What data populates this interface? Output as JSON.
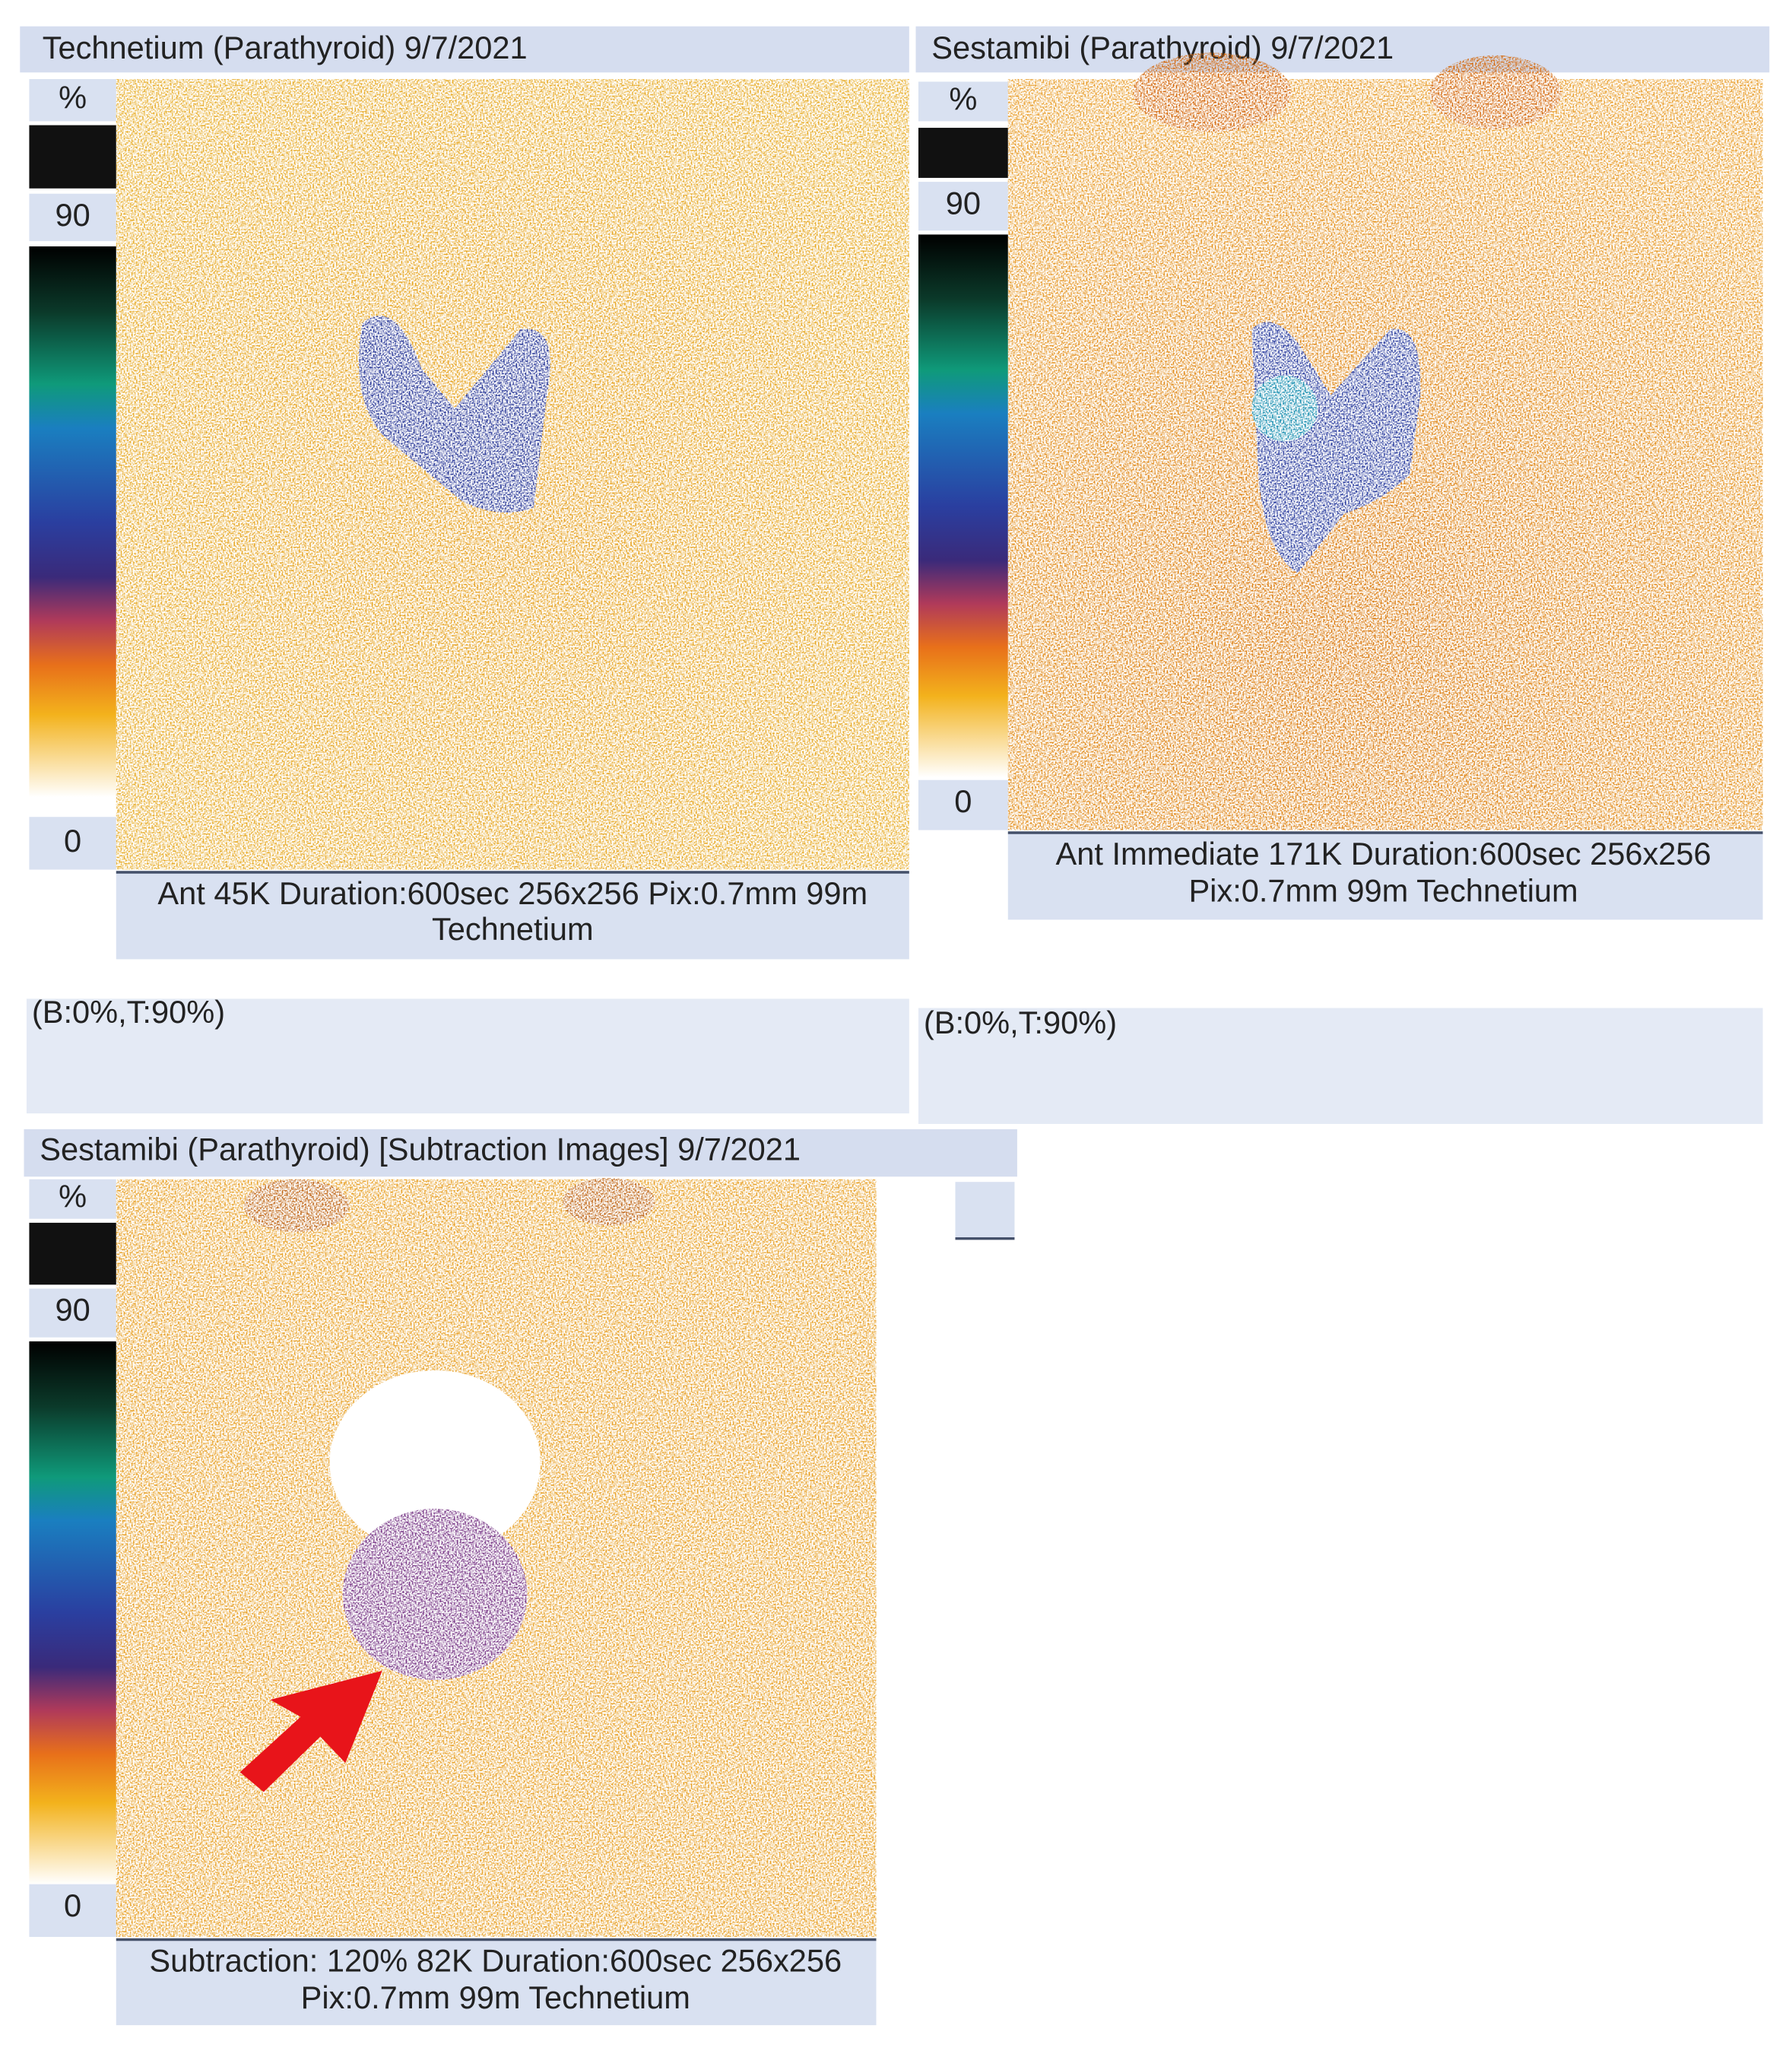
{
  "panels": [
    {
      "title": "Technetium (Parathyroid) 9/7/2021",
      "scale": {
        "unit": "%",
        "max": 90,
        "min": 0
      },
      "caption": [
        "Ant 45K Duration:600sec 256x256 Pix:0.7mm 99m",
        "Technetium"
      ],
      "window": "(B:0%,T:90%)"
    },
    {
      "title": "Sestamibi (Parathyroid) 9/7/2021",
      "scale": {
        "unit": "%",
        "max": 90,
        "min": 0
      },
      "caption": [
        "Ant Immediate 171K Duration:600sec 256x256",
        "Pix:0.7mm 99m Technetium"
      ],
      "window": "(B:0%,T:90%)"
    },
    {
      "title": "Sestamibi (Parathyroid) [Subtraction Images] 9/7/2021",
      "scale": {
        "unit": "%",
        "max": 90,
        "min": 0
      },
      "caption": [
        "Subtraction: 120% 82K Duration:600sec 256x256",
        "Pix:0.7mm 99m Technetium"
      ]
    }
  ]
}
